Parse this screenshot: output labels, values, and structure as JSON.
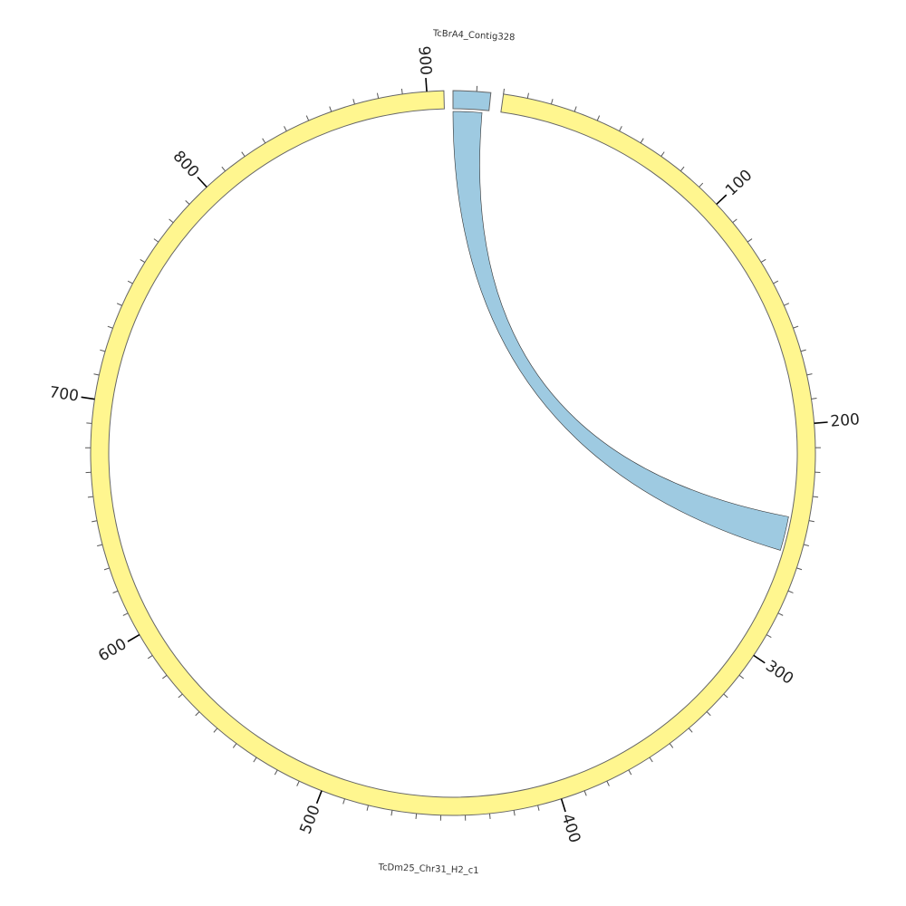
{
  "diagram": {
    "type": "circos",
    "segments": [
      {
        "name": "TcBrA4_Contig328",
        "length": 16,
        "color": "#9ecae1"
      },
      {
        "name": "TcDm25_Chr31_H2_c1",
        "length": 907,
        "color": "#fff68f"
      }
    ],
    "tick_labels": [
      "100",
      "200",
      "300",
      "400",
      "500",
      "600",
      "700",
      "800",
      "900"
    ],
    "links": [
      {
        "from": {
          "segment": "TcBrA4_Contig328",
          "start": 0,
          "end": 13
        },
        "to": {
          "segment": "TcDm25_Chr31_H2_c1",
          "start": 240,
          "end": 255
        },
        "color": "#9ecae1"
      }
    ],
    "outline_color": "#666666"
  }
}
